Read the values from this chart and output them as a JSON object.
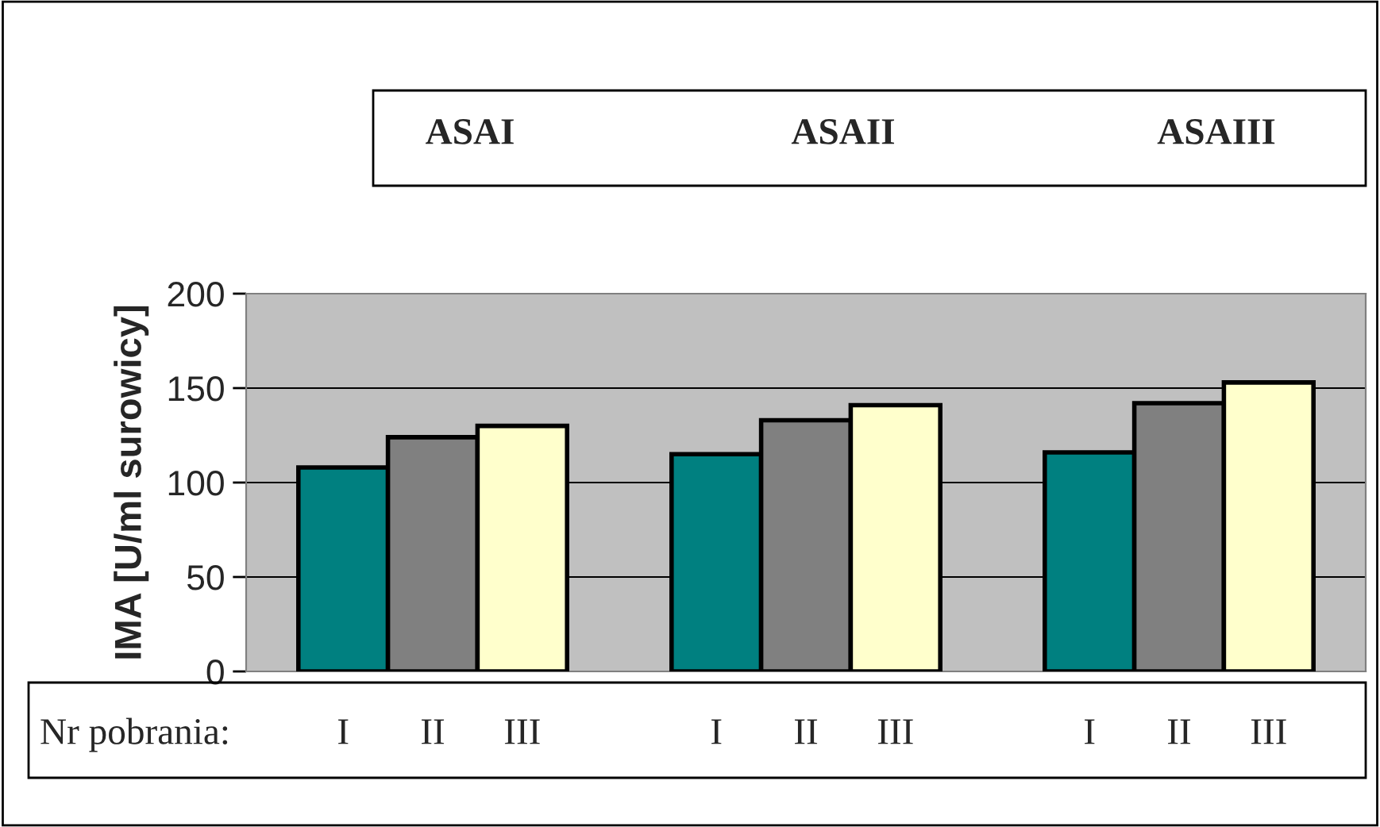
{
  "chart_data": {
    "type": "bar",
    "ylabel": "IMA [U/ml surowicy]",
    "categories": [
      "ASAI",
      "ASAII",
      "ASAIII"
    ],
    "series": [
      {
        "name": "I",
        "color": "#008080",
        "values": [
          108,
          115,
          116
        ]
      },
      {
        "name": "II",
        "color": "#808080",
        "values": [
          124,
          133,
          142
        ]
      },
      {
        "name": "III",
        "color": "#ffffcc",
        "values": [
          130,
          141,
          153
        ]
      }
    ],
    "ylim": [
      0,
      200
    ],
    "yticks": [
      0,
      50,
      100,
      150,
      200
    ],
    "grid": "y",
    "legend": false,
    "annotations": [
      "Nr pobrania:"
    ]
  }
}
